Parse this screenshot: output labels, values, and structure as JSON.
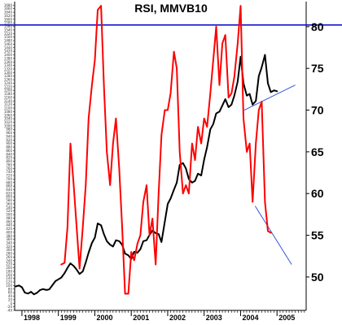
{
  "chart_data": {
    "type": "line",
    "title": "RSI, MMVB10",
    "x_tick_labels": [
      "1998",
      "1999",
      "2000",
      "2001",
      "2002",
      "2003",
      "2004",
      "2005"
    ],
    "right_axis": {
      "ticks": [
        "50",
        "55",
        "60",
        "65",
        "70",
        "75",
        "80"
      ],
      "ylim": [
        46,
        83
      ]
    },
    "left_axis": {
      "ticks": [
        "-40",
        "-20",
        "0",
        "20",
        "40",
        "60",
        "80",
        "100",
        "120",
        "140",
        "160",
        "180",
        "200",
        "220",
        "240",
        "260",
        "280",
        "300",
        "320",
        "340",
        "360",
        "380",
        "400",
        "420",
        "440",
        "460",
        "480",
        "500",
        "520",
        "540",
        "560",
        "580",
        "600",
        "620",
        "640",
        "660",
        "680",
        "700",
        "720",
        "740",
        "760",
        "780",
        "800",
        "820",
        "840",
        "860",
        "880",
        "900",
        "920",
        "940",
        "960",
        "980",
        "1000",
        "1020",
        "1040",
        "1060",
        "1080",
        "1100",
        "1120",
        "1140",
        "1160",
        "1180",
        "1200",
        "1220",
        "1240",
        "1260",
        "1280",
        "1300",
        "1320",
        "1340",
        "1360",
        "1380",
        "1400",
        "1420",
        "1440",
        "1460",
        "1480",
        "1500",
        "1520",
        "1540",
        "1560",
        "1580",
        "1600",
        "1620",
        "1640",
        "1660",
        "1680"
      ],
      "ylim": [
        -40,
        1700
      ]
    },
    "xlim": [
      1997.8,
      2005.8
    ],
    "grid": false,
    "legend": "none",
    "colors": {
      "index": "#000000",
      "rsi": "#ff0000",
      "level": "#0000cc",
      "trend": "#3355dd"
    },
    "series": [
      {
        "axis": "left",
        "color": "#000000",
        "points": [
          [
            1997.83,
            95
          ],
          [
            1997.92,
            100
          ],
          [
            1998.0,
            90
          ],
          [
            1998.08,
            60
          ],
          [
            1998.17,
            55
          ],
          [
            1998.25,
            65
          ],
          [
            1998.33,
            50
          ],
          [
            1998.42,
            60
          ],
          [
            1998.5,
            75
          ],
          [
            1998.58,
            80
          ],
          [
            1998.67,
            75
          ],
          [
            1998.75,
            78
          ],
          [
            1998.83,
            100
          ],
          [
            1998.92,
            125
          ],
          [
            1999.0,
            135
          ],
          [
            1999.08,
            145
          ],
          [
            1999.17,
            170
          ],
          [
            1999.25,
            200
          ],
          [
            1999.33,
            225
          ],
          [
            1999.42,
            210
          ],
          [
            1999.5,
            190
          ],
          [
            1999.58,
            165
          ],
          [
            1999.67,
            180
          ],
          [
            1999.75,
            230
          ],
          [
            1999.83,
            285
          ],
          [
            1999.92,
            340
          ],
          [
            2000.0,
            370
          ],
          [
            2000.08,
            450
          ],
          [
            2000.17,
            440
          ],
          [
            2000.25,
            390
          ],
          [
            2000.33,
            350
          ],
          [
            2000.42,
            330
          ],
          [
            2000.5,
            320
          ],
          [
            2000.58,
            355
          ],
          [
            2000.67,
            350
          ],
          [
            2000.75,
            330
          ],
          [
            2000.83,
            280
          ],
          [
            2000.92,
            270
          ],
          [
            2001.0,
            250
          ],
          [
            2001.08,
            290
          ],
          [
            2001.17,
            285
          ],
          [
            2001.25,
            305
          ],
          [
            2001.33,
            350
          ],
          [
            2001.42,
            355
          ],
          [
            2001.5,
            385
          ],
          [
            2001.58,
            410
          ],
          [
            2001.67,
            395
          ],
          [
            2001.75,
            390
          ],
          [
            2001.83,
            345
          ],
          [
            2001.92,
            460
          ],
          [
            2002.0,
            560
          ],
          [
            2002.08,
            590
          ],
          [
            2002.17,
            640
          ],
          [
            2002.25,
            680
          ],
          [
            2002.33,
            780
          ],
          [
            2002.42,
            790
          ],
          [
            2002.5,
            760
          ],
          [
            2002.58,
            700
          ],
          [
            2002.67,
            680
          ],
          [
            2002.75,
            690
          ],
          [
            2002.83,
            730
          ],
          [
            2002.92,
            720
          ],
          [
            2003.0,
            810
          ],
          [
            2003.08,
            880
          ],
          [
            2003.17,
            980
          ],
          [
            2003.25,
            1010
          ],
          [
            2003.33,
            1070
          ],
          [
            2003.42,
            1080
          ],
          [
            2003.5,
            1115
          ],
          [
            2003.58,
            1150
          ],
          [
            2003.67,
            1105
          ],
          [
            2003.75,
            1120
          ],
          [
            2003.83,
            1170
          ],
          [
            2003.92,
            1250
          ],
          [
            2004.0,
            1390
          ],
          [
            2004.08,
            1240
          ],
          [
            2004.17,
            1170
          ],
          [
            2004.25,
            1180
          ],
          [
            2004.33,
            1120
          ],
          [
            2004.42,
            1140
          ],
          [
            2004.5,
            1280
          ],
          [
            2004.58,
            1330
          ],
          [
            2004.67,
            1400
          ],
          [
            2004.75,
            1240
          ],
          [
            2004.83,
            1190
          ],
          [
            2004.92,
            1200
          ],
          [
            2005.0,
            1195
          ]
        ]
      },
      {
        "axis": "right",
        "color": "#ff0000",
        "points": [
          [
            1999.08,
            51.5
          ],
          [
            1999.17,
            51.7
          ],
          [
            1999.25,
            56
          ],
          [
            1999.33,
            66
          ],
          [
            1999.42,
            61
          ],
          [
            1999.5,
            56
          ],
          [
            1999.58,
            51
          ],
          [
            1999.67,
            56
          ],
          [
            1999.75,
            61
          ],
          [
            1999.83,
            69
          ],
          [
            1999.92,
            73
          ],
          [
            2000.0,
            76
          ],
          [
            2000.08,
            82
          ],
          [
            2000.17,
            82.5
          ],
          [
            2000.25,
            73
          ],
          [
            2000.33,
            65
          ],
          [
            2000.42,
            61
          ],
          [
            2000.5,
            66
          ],
          [
            2000.58,
            69
          ],
          [
            2000.67,
            63
          ],
          [
            2000.75,
            56
          ],
          [
            2000.83,
            48
          ],
          [
            2000.92,
            48
          ],
          [
            2001.0,
            53
          ],
          [
            2001.08,
            52
          ],
          [
            2001.17,
            54
          ],
          [
            2001.25,
            55
          ],
          [
            2001.33,
            59
          ],
          [
            2001.42,
            61
          ],
          [
            2001.5,
            55
          ],
          [
            2001.58,
            57
          ],
          [
            2001.67,
            51.5
          ],
          [
            2001.75,
            60
          ],
          [
            2001.83,
            67
          ],
          [
            2001.92,
            70
          ],
          [
            2002.0,
            70
          ],
          [
            2002.08,
            72
          ],
          [
            2002.17,
            77
          ],
          [
            2002.25,
            75
          ],
          [
            2002.33,
            65
          ],
          [
            2002.42,
            60
          ],
          [
            2002.5,
            61
          ],
          [
            2002.58,
            60
          ],
          [
            2002.67,
            66
          ],
          [
            2002.75,
            64
          ],
          [
            2002.83,
            68
          ],
          [
            2002.92,
            66
          ],
          [
            2003.0,
            69
          ],
          [
            2003.08,
            68
          ],
          [
            2003.17,
            72
          ],
          [
            2003.25,
            76
          ],
          [
            2003.33,
            80
          ],
          [
            2003.42,
            73
          ],
          [
            2003.5,
            78
          ],
          [
            2003.58,
            79
          ],
          [
            2003.67,
            71.5
          ],
          [
            2003.75,
            72
          ],
          [
            2003.83,
            74
          ],
          [
            2003.92,
            78
          ],
          [
            2004.0,
            82.5
          ],
          [
            2004.08,
            69
          ],
          [
            2004.17,
            65
          ],
          [
            2004.25,
            66
          ],
          [
            2004.33,
            59
          ],
          [
            2004.42,
            66
          ],
          [
            2004.5,
            70
          ],
          [
            2004.58,
            71
          ],
          [
            2004.67,
            59
          ],
          [
            2004.75,
            55.5
          ],
          [
            2004.83,
            55.3
          ]
        ]
      }
    ],
    "reference_lines": [
      {
        "type": "horizontal",
        "axis": "right",
        "y": 80.2,
        "color": "#0000cc"
      },
      {
        "type": "segment",
        "axis": "right",
        "from": [
          2004.1,
          70
        ],
        "to": [
          2005.5,
          73
        ],
        "color": "#3355dd"
      },
      {
        "type": "segment",
        "axis": "right",
        "from": [
          2004.4,
          58.5
        ],
        "to": [
          2005.4,
          51.5
        ],
        "color": "#3355dd"
      }
    ]
  }
}
